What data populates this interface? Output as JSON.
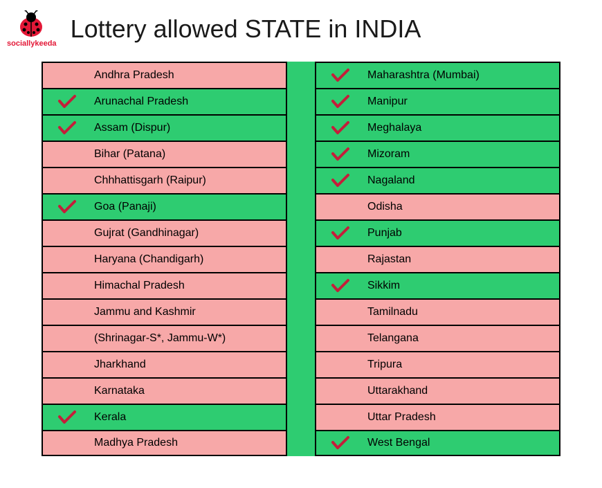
{
  "header": {
    "logo_text": "sociallykeeda",
    "title": "Lottery allowed STATE in INDIA"
  },
  "colors": {
    "allowed_bg": "#2ecc71",
    "not_allowed_bg": "#f7a8a8",
    "border": "#000000",
    "check_color": "#c41e3a",
    "logo_color": "#e31837",
    "title_color": "#1a1a1a"
  },
  "left_column": [
    {
      "name": "Andhra Pradesh",
      "allowed": false
    },
    {
      "name": "Arunachal Pradesh",
      "allowed": true
    },
    {
      "name": "Assam (Dispur)",
      "allowed": true
    },
    {
      "name": "Bihar (Patana)",
      "allowed": false
    },
    {
      "name": "Chhhattisgarh (Raipur)",
      "allowed": false
    },
    {
      "name": "Goa (Panaji)",
      "allowed": true
    },
    {
      "name": "Gujrat (Gandhinagar)",
      "allowed": false
    },
    {
      "name": "Haryana (Chandigarh)",
      "allowed": false
    },
    {
      "name": "Himachal Pradesh",
      "allowed": false
    },
    {
      "name": "Jammu and Kashmir",
      "allowed": false
    },
    {
      "name": "(Shrinagar-S*, Jammu-W*)",
      "allowed": false
    },
    {
      "name": "Jharkhand",
      "allowed": false
    },
    {
      "name": "Karnataka",
      "allowed": false
    },
    {
      "name": "Kerala",
      "allowed": true
    },
    {
      "name": "Madhya Pradesh",
      "allowed": false
    }
  ],
  "right_column": [
    {
      "name": "Maharashtra (Mumbai)",
      "allowed": true
    },
    {
      "name": "Manipur",
      "allowed": true
    },
    {
      "name": "Meghalaya",
      "allowed": true
    },
    {
      "name": "Mizoram",
      "allowed": true
    },
    {
      "name": "Nagaland",
      "allowed": true
    },
    {
      "name": "Odisha",
      "allowed": false
    },
    {
      "name": "Punjab",
      "allowed": true
    },
    {
      "name": "Rajastan",
      "allowed": false
    },
    {
      "name": "Sikkim",
      "allowed": true
    },
    {
      "name": "Tamilnadu",
      "allowed": false
    },
    {
      "name": "Telangana",
      "allowed": false
    },
    {
      "name": "Tripura",
      "allowed": false
    },
    {
      "name": "Uttarakhand",
      "allowed": false
    },
    {
      "name": "Uttar Pradesh",
      "allowed": false
    },
    {
      "name": "West Bengal",
      "allowed": true
    }
  ]
}
